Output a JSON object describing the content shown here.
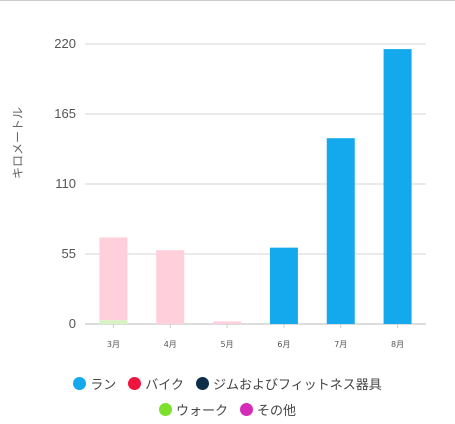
{
  "chart_data": {
    "type": "bar",
    "stacked": true,
    "categories": [
      "3月",
      "4月",
      "5月",
      "6月",
      "7月",
      "8月"
    ],
    "ylabel": "キロメートル",
    "ylim": [
      0,
      220
    ],
    "yticks": [
      0,
      55,
      110,
      165,
      220
    ],
    "ytick_labels": [
      "0",
      "55",
      "110",
      "165",
      "220"
    ],
    "grid": true,
    "legend_position": "bottom",
    "series": [
      {
        "name": "ラン",
        "color": "#14a8ec",
        "values": [
          0,
          0,
          0,
          60,
          146,
          216
        ]
      },
      {
        "name": "バイク",
        "color": "#f0133c",
        "values": [
          0,
          0,
          0,
          0,
          0,
          0
        ]
      },
      {
        "name": "ジムおよびフィットネス器具",
        "color": "#0d2e4a",
        "values": [
          0,
          0,
          0,
          0,
          0,
          0
        ]
      },
      {
        "name": "ウォーク",
        "color": "#7de02c",
        "values": [
          3,
          0,
          0,
          0,
          0,
          0
        ]
      },
      {
        "name": "その他",
        "color": "#d42cb8",
        "values": [
          65,
          58,
          2,
          0,
          0,
          0
        ]
      }
    ],
    "faded_series": [
      "ウォーク",
      "その他"
    ]
  }
}
